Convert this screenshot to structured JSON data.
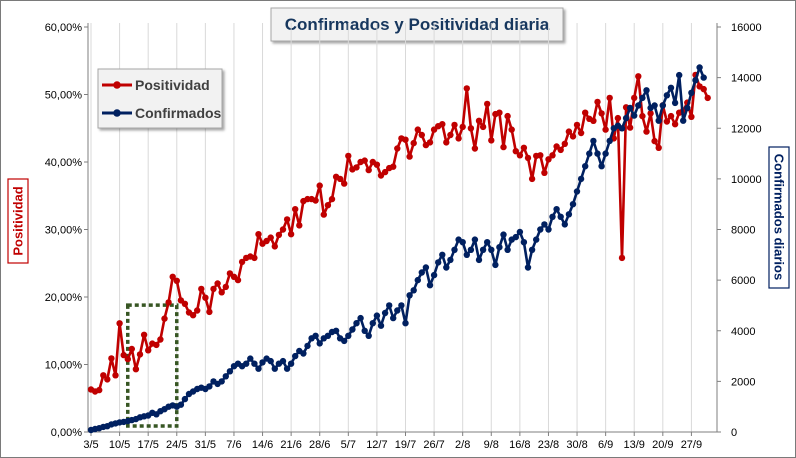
{
  "chart_data": {
    "type": "line",
    "title": "Confirmados  y Positividad  diaria",
    "y_left_label": "Positividad",
    "y_right_label": "Confirmados diarios",
    "y_left_ticks": [
      "0,00%",
      "10,00%",
      "20,00%",
      "30,00%",
      "40,00%",
      "50,00%",
      "60,00%"
    ],
    "y_left_lim": [
      0,
      60
    ],
    "y_right_ticks": [
      "0",
      "2000",
      "4000",
      "6000",
      "8000",
      "10000",
      "12000",
      "14000",
      "16000"
    ],
    "y_right_lim": [
      0,
      16000
    ],
    "x_ticks": [
      "3/5",
      "10/5",
      "17/5",
      "24/5",
      "31/5",
      "7/6",
      "14/6",
      "21/6",
      "28/6",
      "5/7",
      "12/7",
      "19/7",
      "26/7",
      "2/8",
      "9/8",
      "16/8",
      "23/8",
      "30/8",
      "6/9",
      "13/9",
      "20/9",
      "27/9"
    ],
    "x_tick_interval": 7,
    "legend_position": "top-left",
    "grid": "vertical",
    "highlight_box": {
      "x_range": [
        9,
        21
      ],
      "y_range_pct": [
        0,
        18.8
      ]
    },
    "series": [
      {
        "name": "Positividad",
        "axis": "left",
        "color": "#c00000",
        "values": [
          6.3,
          6.0,
          6.2,
          8.4,
          7.8,
          10.9,
          8.4,
          16.1,
          11.4,
          10.8,
          12.3,
          9.3,
          11.5,
          14.4,
          12.1,
          13.1,
          12.9,
          13.7,
          16.8,
          19.2,
          23.0,
          22.4,
          19.5,
          19.0,
          17.7,
          17.3,
          18.0,
          21.2,
          19.9,
          17.8,
          21.2,
          22.0,
          20.7,
          21.5,
          23.5,
          23.0,
          22.5,
          25.2,
          25.8,
          26.0,
          25.8,
          29.3,
          27.9,
          28.3,
          28.8,
          27.5,
          29.2,
          30.0,
          31.5,
          29.3,
          33.0,
          30.6,
          34.2,
          34.5,
          34.5,
          34.3,
          36.5,
          32.2,
          33.6,
          34.5,
          37.8,
          37.5,
          36.8,
          40.9,
          38.9,
          39.2,
          40.0,
          40.2,
          38.8,
          40.0,
          39.6,
          38.0,
          38.5,
          39.1,
          39.3,
          42.0,
          43.5,
          43.3,
          40.8,
          42.8,
          44.8,
          44.0,
          42.5,
          42.9,
          44.8,
          45.3,
          45.6,
          42.9,
          44.0,
          45.5,
          43.5,
          45.2,
          50.9,
          45.0,
          42.0,
          46.1,
          45.2,
          48.6,
          43.2,
          47.1,
          47.3,
          42.2,
          46.8,
          44.8,
          41.6,
          41.0,
          42.1,
          40.6,
          37.5,
          40.9,
          41.0,
          38.4,
          40.4,
          41.0,
          42.3,
          41.8,
          42.7,
          44.5,
          43.8,
          45.5,
          44.3,
          47.3,
          46.4,
          46.1,
          48.9,
          47.2,
          44.8,
          49.5,
          43.5,
          46.5,
          25.8,
          48.1,
          45.1,
          49.5,
          52.7,
          46.8,
          44.5,
          47.2,
          43.1,
          42.1,
          48.4,
          46.0,
          46.8,
          45.6,
          47.3,
          47.6,
          48.8,
          46.7,
          52.9,
          51.2,
          50.8,
          49.5
        ]
      },
      {
        "name": "Confirmados",
        "axis": "right",
        "color": "#002060",
        "values": [
          80,
          120,
          150,
          200,
          230,
          300,
          340,
          380,
          400,
          430,
          470,
          510,
          580,
          620,
          650,
          760,
          700,
          820,
          900,
          1000,
          1050,
          1000,
          1080,
          1300,
          1500,
          1600,
          1700,
          1750,
          1700,
          1800,
          2000,
          1900,
          2000,
          2200,
          2400,
          2600,
          2700,
          2600,
          2700,
          2900,
          2700,
          2500,
          2750,
          2900,
          2800,
          2500,
          2700,
          2800,
          2500,
          2700,
          3000,
          3200,
          3100,
          3400,
          3700,
          3800,
          3500,
          3700,
          3800,
          3950,
          4000,
          3700,
          3600,
          3800,
          4050,
          4300,
          4500,
          4000,
          3800,
          4300,
          4600,
          4200,
          4700,
          5000,
          4500,
          4800,
          5000,
          4300,
          5400,
          5600,
          6000,
          6300,
          6500,
          5800,
          6200,
          6700,
          7000,
          6500,
          6800,
          7200,
          7600,
          7500,
          7000,
          7200,
          7600,
          6800,
          7200,
          7500,
          7200,
          6600,
          7300,
          7800,
          7200,
          7600,
          7700,
          7900,
          7500,
          6500,
          7200,
          7600,
          8000,
          8200,
          8000,
          8500,
          8800,
          8500,
          8200,
          8600,
          9000,
          9500,
          10000,
          10500,
          11000,
          11500,
          11000,
          10500,
          11000,
          11500,
          12000,
          12100,
          12000,
          12400,
          12800,
          12500,
          12900,
          13200,
          13500,
          12800,
          12900,
          12300,
          12900,
          13300,
          13600,
          13000,
          14100,
          12300,
          12800,
          13400,
          13900,
          14400,
          14000
        ]
      }
    ]
  }
}
